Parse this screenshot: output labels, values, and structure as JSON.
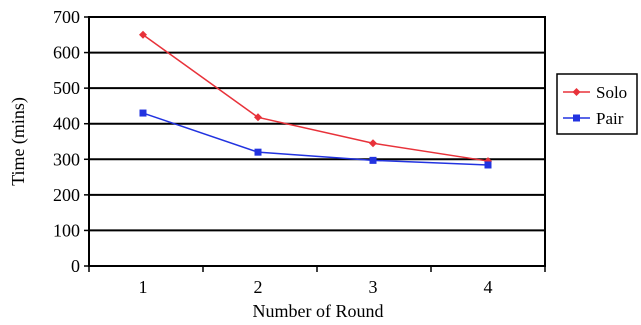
{
  "chart_data": {
    "type": "line",
    "x": [
      1,
      2,
      3,
      4
    ],
    "xticks": [
      "1",
      "2",
      "3",
      "4"
    ],
    "xlabel": "Number of Round",
    "ylabel": "Time (mins)",
    "ylim": [
      0,
      700
    ],
    "yticks": [
      "0",
      "100",
      "200",
      "300",
      "400",
      "500",
      "600",
      "700"
    ],
    "grid": true,
    "legend_position": "right",
    "series": [
      {
        "name": "Solo",
        "color": "#e8323a",
        "marker": "diamond",
        "values": [
          650,
          418,
          345,
          295
        ]
      },
      {
        "name": "Pair",
        "color": "#2233e0",
        "marker": "square",
        "values": [
          430,
          320,
          297,
          284
        ]
      }
    ]
  }
}
